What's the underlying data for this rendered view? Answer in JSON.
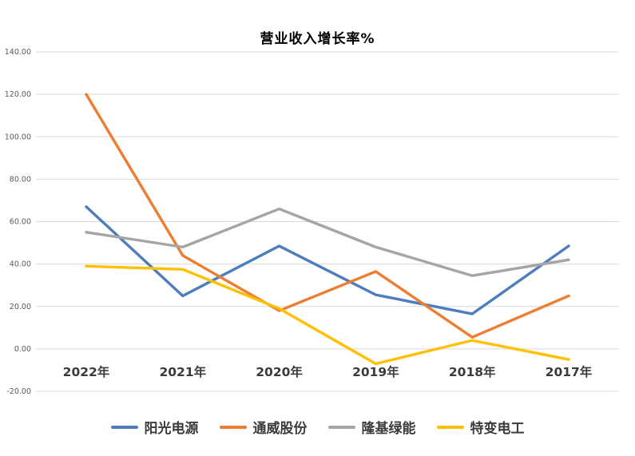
{
  "chart_data": {
    "type": "line",
    "title": "营业收入增长率%",
    "categories": [
      "2022年",
      "2021年",
      "2020年",
      "2019年",
      "2018年",
      "2017年"
    ],
    "series": [
      {
        "name": "阳光电源",
        "color": "#4e7dbe",
        "values": [
          67.0,
          25.0,
          48.5,
          25.5,
          16.5,
          48.5
        ]
      },
      {
        "name": "通威股份",
        "color": "#ed7d31",
        "values": [
          120.0,
          44.0,
          18.0,
          36.5,
          5.5,
          25.0
        ]
      },
      {
        "name": "隆基绿能",
        "color": "#a5a5a5",
        "values": [
          55.0,
          48.0,
          66.0,
          48.0,
          34.5,
          42.0
        ]
      },
      {
        "name": "特变电工",
        "color": "#ffc000",
        "values": [
          39.0,
          37.5,
          19.0,
          -7.0,
          4.0,
          -5.0
        ]
      }
    ],
    "ylim": [
      -20,
      140
    ],
    "ytick_values": [
      140,
      120,
      100,
      80,
      60,
      40,
      20,
      0,
      -20
    ],
    "ytick_labels": [
      "140.00",
      "120.00",
      "100.00",
      "80.00",
      "60.00",
      "40.00",
      "20.00",
      "0.00",
      "-20.00"
    ],
    "xlabel": "",
    "ylabel": "",
    "grid": true,
    "legend_position": "bottom",
    "styles": {
      "grid_color": "#d9d9d9",
      "ytick_color": "#595959",
      "xtick_color": "#3b3b3b",
      "background": "#ffffff"
    }
  }
}
